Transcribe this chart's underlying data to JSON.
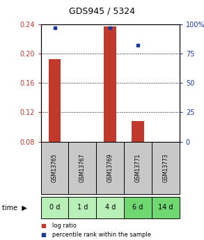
{
  "title": "GDS945 / 5324",
  "categories": [
    "GSM13765",
    "GSM13767",
    "GSM13769",
    "GSM13771",
    "GSM13773"
  ],
  "time_labels": [
    "0 d",
    "1 d",
    "4 d",
    "6 d",
    "14 d"
  ],
  "log_ratio": [
    0.192,
    0.08,
    0.237,
    0.108,
    0.08
  ],
  "percentile_rank": [
    97,
    null,
    97,
    82,
    null
  ],
  "ylim_left": [
    0.08,
    0.24
  ],
  "ylim_right": [
    0,
    100
  ],
  "yticks_left": [
    0.08,
    0.12,
    0.16,
    0.2,
    0.24
  ],
  "yticks_right": [
    0,
    25,
    50,
    75,
    100
  ],
  "bar_color": "#c0392b",
  "point_color": "#1a3a9e",
  "background_color": "#ffffff",
  "label_bg_color": "#c8c8c8",
  "time_bg_colors": [
    "#b8f0b8",
    "#b8f0b8",
    "#b8f0b8",
    "#70d870",
    "#70d870"
  ],
  "bar_width": 0.45,
  "legend_bar_label": "log ratio",
  "legend_point_label": "percentile rank within the sample",
  "title_fontsize": 9,
  "tick_fontsize": 7,
  "gsm_fontsize": 5.5,
  "time_fontsize": 7,
  "legend_fontsize": 6
}
